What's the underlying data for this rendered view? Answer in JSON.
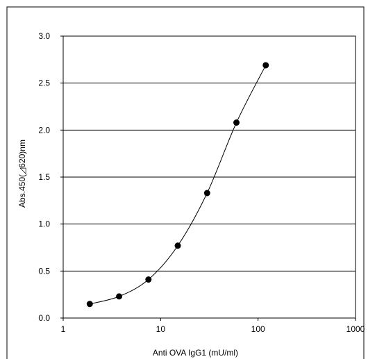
{
  "chart_data": {
    "type": "scatter",
    "title": "",
    "xlabel": "Anti OVA IgG1 (mU/ml)",
    "ylabel": "Abs.450(◿620)nm",
    "x_scale": "log",
    "xlim": [
      1,
      1000
    ],
    "ylim": [
      0,
      3.0
    ],
    "x_ticks": [
      1,
      10,
      100,
      1000
    ],
    "x_tick_labels": [
      "1",
      "10",
      "100",
      "1000"
    ],
    "y_ticks": [
      0,
      0.5,
      1.0,
      1.5,
      2.0,
      2.5,
      3.0
    ],
    "y_tick_labels": [
      "0.0",
      "0.5",
      "1.0",
      "1.5",
      "2.0",
      "2.5",
      "3.0"
    ],
    "grid": "horizontal",
    "fit_line": "smooth curve",
    "series": [
      {
        "x": [
          1.875,
          3.75,
          7.5,
          15,
          30,
          60,
          120
        ],
        "y": [
          0.15,
          0.23,
          0.41,
          0.77,
          1.33,
          2.08,
          2.69
        ],
        "marker": "filled-circle",
        "color": "#000000"
      }
    ]
  }
}
